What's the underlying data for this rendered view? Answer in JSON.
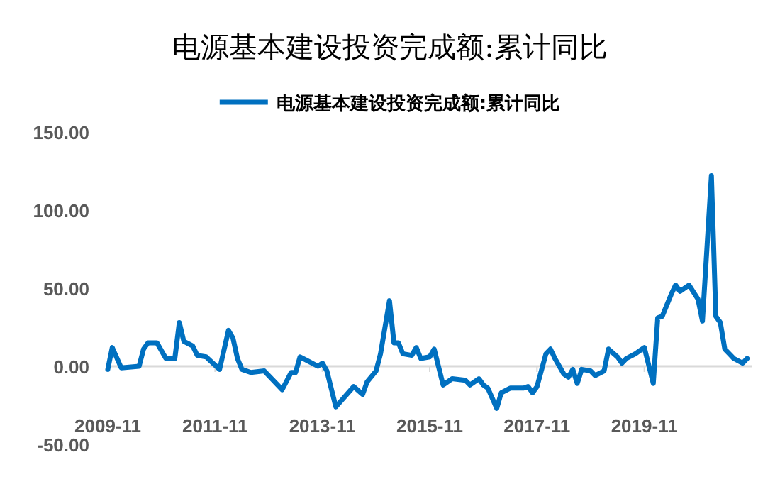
{
  "chart_data": {
    "type": "line",
    "title": "电源基本建设投资完成额:累计同比",
    "legend": "top",
    "x": [
      "2009-11",
      "2009-12",
      "2010-02",
      "2010-06",
      "2010-07",
      "2010-08",
      "2010-10",
      "2010-12",
      "2011-02",
      "2011-03",
      "2011-04",
      "2011-06",
      "2011-07",
      "2011-09",
      "2011-12",
      "2012-02",
      "2012-03",
      "2012-04",
      "2012-05",
      "2012-07",
      "2012-10",
      "2013-02",
      "2013-04",
      "2013-05",
      "2013-06",
      "2013-08",
      "2013-10",
      "2013-11",
      "2013-12",
      "2014-02",
      "2014-06",
      "2014-08",
      "2014-09",
      "2014-11",
      "2014-12",
      "2015-02",
      "2015-03",
      "2015-04",
      "2015-05",
      "2015-07",
      "2015-08",
      "2015-09",
      "2015-11",
      "2015-12",
      "2016-02",
      "2016-04",
      "2016-07",
      "2016-08",
      "2016-10",
      "2016-11",
      "2016-12",
      "2017-02",
      "2017-03",
      "2017-05",
      "2017-08",
      "2017-09",
      "2017-10",
      "2017-11",
      "2018-01",
      "2018-02",
      "2018-03",
      "2018-05",
      "2018-06",
      "2018-07",
      "2018-08",
      "2018-09",
      "2018-11",
      "2018-12",
      "2019-02",
      "2019-03",
      "2019-05",
      "2019-06",
      "2019-07",
      "2019-09",
      "2019-11",
      "2020-01",
      "2020-02",
      "2020-03",
      "2020-05",
      "2020-06",
      "2020-07",
      "2020-09",
      "2020-11",
      "2020-12",
      "2021-02",
      "2021-03",
      "2021-04",
      "2021-05",
      "2021-06",
      "2021-07",
      "2021-09",
      "2021-10"
    ],
    "series": [
      {
        "name": "电源基本建设投资完成额:累计同比",
        "color": "#0070c0",
        "values": [
          -2,
          12,
          -1,
          0,
          11,
          15,
          15,
          5,
          5,
          28,
          16,
          13,
          7,
          6,
          -2,
          23,
          18,
          5,
          -2,
          -4,
          -3,
          -15,
          -4,
          -4,
          6,
          3,
          0,
          2,
          -3,
          -26,
          -13,
          -18,
          -10,
          -3,
          8,
          42,
          15,
          15,
          8,
          7,
          12,
          5,
          6,
          11,
          -12,
          -8,
          -9,
          -12,
          -8,
          -12,
          -14,
          -27,
          -17,
          -14,
          -14,
          -13,
          -17,
          -13,
          8,
          11,
          5,
          -5,
          -7,
          -2,
          -11,
          -2,
          -3,
          -6,
          -3,
          11,
          6,
          2,
          5,
          8,
          12,
          -11,
          31,
          32,
          46,
          52,
          48,
          52,
          43,
          29,
          122,
          32,
          28,
          11,
          8,
          5,
          2,
          5
        ]
      }
    ],
    "xlim": [
      "2009-11",
      "2021-11"
    ],
    "xticks": [
      "2009-11",
      "2011-11",
      "2013-11",
      "2015-11",
      "2017-11",
      "2019-11"
    ],
    "ylim": [
      -50,
      150
    ],
    "yticks": [
      {
        "value": -50,
        "label": "-50.00"
      },
      {
        "value": 0,
        "label": "0.00"
      },
      {
        "value": 50,
        "label": "50.00"
      },
      {
        "value": 100,
        "label": "100.00"
      },
      {
        "value": 150,
        "label": "150.00"
      }
    ]
  }
}
